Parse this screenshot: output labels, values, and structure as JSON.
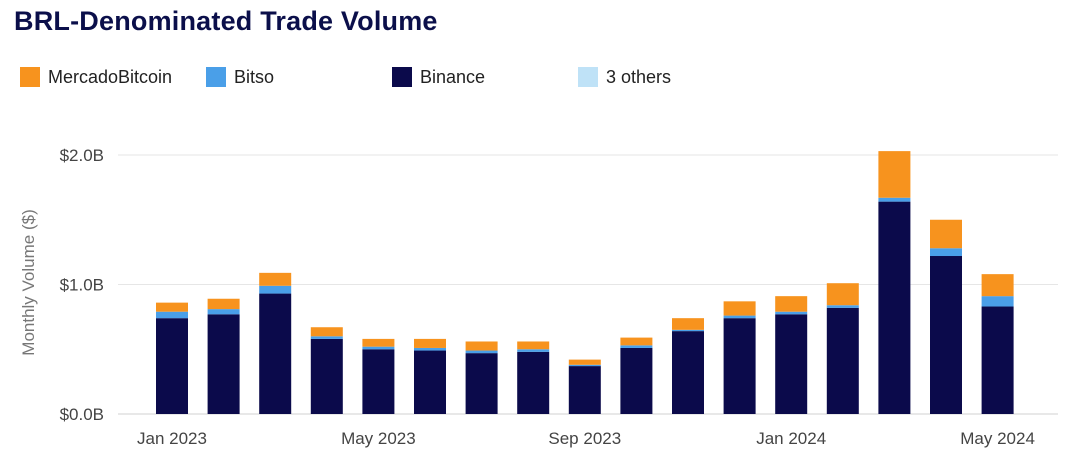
{
  "title": "BRL-Denominated Trade Volume",
  "legend": [
    {
      "name": "MercadoBitcoin",
      "color": "#f7931e"
    },
    {
      "name": "Bitso",
      "color": "#4a9fe8"
    },
    {
      "name": "Binance",
      "color": "#0b0a4b"
    },
    {
      "name": "3 others",
      "color": "#bfe2f7"
    }
  ],
  "chart_data": {
    "type": "bar",
    "stacked": true,
    "ylabel": "Monthly Volume ($)",
    "ylim": [
      0,
      2.05
    ],
    "yticks": [
      {
        "value": 0,
        "label": "$0.0B"
      },
      {
        "value": 1,
        "label": "$1.0B"
      },
      {
        "value": 2,
        "label": "$2.0B"
      }
    ],
    "categories": [
      "Jan 2023",
      "Feb 2023",
      "Mar 2023",
      "Apr 2023",
      "May 2023",
      "Jun 2023",
      "Jul 2023",
      "Aug 2023",
      "Sep 2023",
      "Oct 2023",
      "Nov 2023",
      "Dec 2023",
      "Jan 2024",
      "Feb 2024",
      "Mar 2024",
      "Apr 2024",
      "May 2024"
    ],
    "xtick_labels": [
      {
        "index": 0,
        "label": "Jan 2023"
      },
      {
        "index": 4,
        "label": "May 2023"
      },
      {
        "index": 8,
        "label": "Sep 2023"
      },
      {
        "index": 12,
        "label": "Jan 2024"
      },
      {
        "index": 16,
        "label": "May 2024"
      }
    ],
    "series": [
      {
        "name": "Binance",
        "color": "#0b0a4b",
        "values": [
          0.74,
          0.77,
          0.93,
          0.58,
          0.5,
          0.49,
          0.47,
          0.48,
          0.37,
          0.51,
          0.64,
          0.74,
          0.77,
          0.82,
          1.64,
          1.22,
          0.83
        ]
      },
      {
        "name": "Bitso",
        "color": "#4a9fe8",
        "values": [
          0.05,
          0.04,
          0.06,
          0.02,
          0.02,
          0.02,
          0.02,
          0.02,
          0.01,
          0.02,
          0.01,
          0.02,
          0.02,
          0.02,
          0.03,
          0.06,
          0.08
        ]
      },
      {
        "name": "3 others",
        "color": "#bfe2f7",
        "values": [
          0,
          0,
          0,
          0,
          0,
          0,
          0,
          0,
          0,
          0,
          0,
          0,
          0,
          0,
          0,
          0,
          0
        ]
      },
      {
        "name": "MercadoBitcoin",
        "color": "#f7931e",
        "values": [
          0.07,
          0.08,
          0.1,
          0.07,
          0.06,
          0.07,
          0.07,
          0.06,
          0.04,
          0.06,
          0.09,
          0.11,
          0.12,
          0.17,
          0.36,
          0.22,
          0.17
        ]
      }
    ]
  }
}
